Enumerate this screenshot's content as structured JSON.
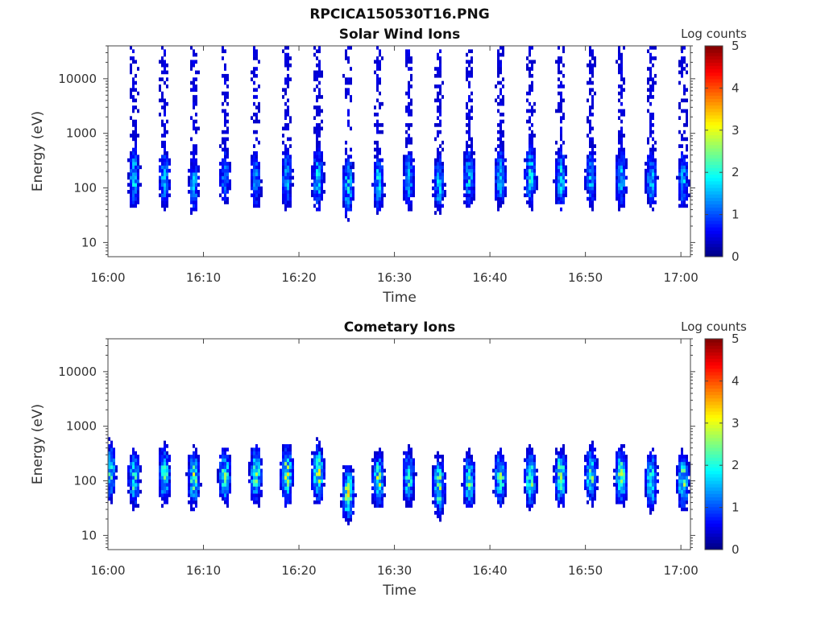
{
  "figure_title": "RPCICA150530T16.PNG",
  "chart_data": [
    {
      "type": "heatmap",
      "title": "Solar Wind Ions",
      "xlabel": "Time",
      "ylabel": "Energy (eV)",
      "x_ticks": [
        "16:00",
        "16:10",
        "16:20",
        "16:30",
        "16:40",
        "16:50",
        "17:00"
      ],
      "y_ticks": [
        "10",
        "100",
        "1000",
        "10000"
      ],
      "y_scale": "log",
      "xlim": [
        "16:00",
        "17:01"
      ],
      "ylim": [
        5.5,
        40000
      ],
      "colorbar": {
        "label": "Log counts",
        "ticks": [
          "0",
          "1",
          "2",
          "3",
          "4",
          "5"
        ],
        "range": [
          0,
          5
        ],
        "colormap": "jet"
      },
      "bursts": [
        {
          "time": "16:02:45",
          "center_eV": 160,
          "peak": 1.8,
          "spread": 0.35,
          "ext": 0.5
        },
        {
          "time": "16:05:55",
          "center_eV": 150,
          "peak": 1.6,
          "spread": 0.35,
          "ext": 0.5
        },
        {
          "time": "16:09:00",
          "center_eV": 120,
          "peak": 1.5,
          "spread": 0.35,
          "ext": 0.5
        },
        {
          "time": "16:12:15",
          "center_eV": 170,
          "peak": 1.3,
          "spread": 0.35,
          "ext": 0.5
        },
        {
          "time": "16:15:30",
          "center_eV": 140,
          "peak": 1.4,
          "spread": 0.35,
          "ext": 0.5
        },
        {
          "time": "16:18:45",
          "center_eV": 160,
          "peak": 1.7,
          "spread": 0.35,
          "ext": 0.5
        },
        {
          "time": "16:22:00",
          "center_eV": 150,
          "peak": 1.9,
          "spread": 0.35,
          "ext": 0.5
        },
        {
          "time": "16:25:10",
          "center_eV": 110,
          "peak": 1.8,
          "spread": 0.35,
          "ext": 0.5
        },
        {
          "time": "16:28:20",
          "center_eV": 130,
          "peak": 1.8,
          "spread": 0.35,
          "ext": 0.5
        },
        {
          "time": "16:31:30",
          "center_eV": 150,
          "peak": 1.6,
          "spread": 0.35,
          "ext": 0.5
        },
        {
          "time": "16:34:40",
          "center_eV": 120,
          "peak": 1.7,
          "spread": 0.35,
          "ext": 0.5
        },
        {
          "time": "16:37:50",
          "center_eV": 160,
          "peak": 1.8,
          "spread": 0.35,
          "ext": 0.5
        },
        {
          "time": "16:41:05",
          "center_eV": 160,
          "peak": 1.8,
          "spread": 0.35,
          "ext": 0.5
        },
        {
          "time": "16:44:15",
          "center_eV": 170,
          "peak": 2.0,
          "spread": 0.35,
          "ext": 0.5
        },
        {
          "time": "16:47:25",
          "center_eV": 150,
          "peak": 1.9,
          "spread": 0.35,
          "ext": 0.5
        },
        {
          "time": "16:50:35",
          "center_eV": 160,
          "peak": 1.6,
          "spread": 0.35,
          "ext": 0.5
        },
        {
          "time": "16:53:45",
          "center_eV": 160,
          "peak": 1.7,
          "spread": 0.35,
          "ext": 0.5
        },
        {
          "time": "16:56:55",
          "center_eV": 150,
          "peak": 1.7,
          "spread": 0.35,
          "ext": 0.5
        },
        {
          "time": "17:00:15",
          "center_eV": 140,
          "peak": 1.6,
          "spread": 0.35,
          "ext": 0.5
        }
      ]
    },
    {
      "type": "heatmap",
      "title": "Cometary Ions",
      "xlabel": "Time",
      "ylabel": "Energy (eV)",
      "x_ticks": [
        "16:00",
        "16:10",
        "16:20",
        "16:30",
        "16:40",
        "16:50",
        "17:00"
      ],
      "y_ticks": [
        "10",
        "100",
        "1000",
        "10000"
      ],
      "y_scale": "log",
      "xlim": [
        "16:00",
        "17:01"
      ],
      "ylim": [
        5.5,
        40000
      ],
      "colorbar": {
        "label": "Log counts",
        "ticks": [
          "0",
          "1",
          "2",
          "3",
          "4",
          "5"
        ],
        "range": [
          0,
          5
        ],
        "colormap": "jet"
      },
      "bursts": [
        {
          "time": "16:00:15",
          "center_eV": 150,
          "peak": 2.2,
          "spread": 0.3,
          "ext": 0.25
        },
        {
          "time": "16:02:45",
          "center_eV": 110,
          "peak": 2.3,
          "spread": 0.3,
          "ext": 0.25
        },
        {
          "time": "16:05:55",
          "center_eV": 130,
          "peak": 2.4,
          "spread": 0.3,
          "ext": 0.25
        },
        {
          "time": "16:09:00",
          "center_eV": 110,
          "peak": 2.6,
          "spread": 0.3,
          "ext": 0.25
        },
        {
          "time": "16:12:15",
          "center_eV": 120,
          "peak": 2.5,
          "spread": 0.3,
          "ext": 0.25
        },
        {
          "time": "16:15:30",
          "center_eV": 130,
          "peak": 2.6,
          "spread": 0.3,
          "ext": 0.25
        },
        {
          "time": "16:18:45",
          "center_eV": 130,
          "peak": 2.9,
          "spread": 0.3,
          "ext": 0.25
        },
        {
          "time": "16:22:00",
          "center_eV": 140,
          "peak": 2.9,
          "spread": 0.3,
          "ext": 0.25
        },
        {
          "time": "16:25:10",
          "center_eV": 60,
          "peak": 2.9,
          "spread": 0.3,
          "ext": 0.25
        },
        {
          "time": "16:28:20",
          "center_eV": 100,
          "peak": 2.7,
          "spread": 0.3,
          "ext": 0.25
        },
        {
          "time": "16:31:30",
          "center_eV": 120,
          "peak": 2.4,
          "spread": 0.3,
          "ext": 0.25
        },
        {
          "time": "16:34:40",
          "center_eV": 80,
          "peak": 2.6,
          "spread": 0.3,
          "ext": 0.25
        },
        {
          "time": "16:37:50",
          "center_eV": 100,
          "peak": 2.3,
          "spread": 0.3,
          "ext": 0.25
        },
        {
          "time": "16:41:05",
          "center_eV": 110,
          "peak": 2.5,
          "spread": 0.3,
          "ext": 0.25
        },
        {
          "time": "16:44:15",
          "center_eV": 110,
          "peak": 2.6,
          "spread": 0.3,
          "ext": 0.25
        },
        {
          "time": "16:47:25",
          "center_eV": 120,
          "peak": 2.7,
          "spread": 0.3,
          "ext": 0.25
        },
        {
          "time": "16:50:35",
          "center_eV": 130,
          "peak": 2.5,
          "spread": 0.3,
          "ext": 0.25
        },
        {
          "time": "16:53:45",
          "center_eV": 120,
          "peak": 2.6,
          "spread": 0.3,
          "ext": 0.25
        },
        {
          "time": "16:56:55",
          "center_eV": 100,
          "peak": 2.5,
          "spread": 0.3,
          "ext": 0.25
        },
        {
          "time": "17:00:15",
          "center_eV": 100,
          "peak": 2.5,
          "spread": 0.3,
          "ext": 0.25
        }
      ]
    }
  ]
}
